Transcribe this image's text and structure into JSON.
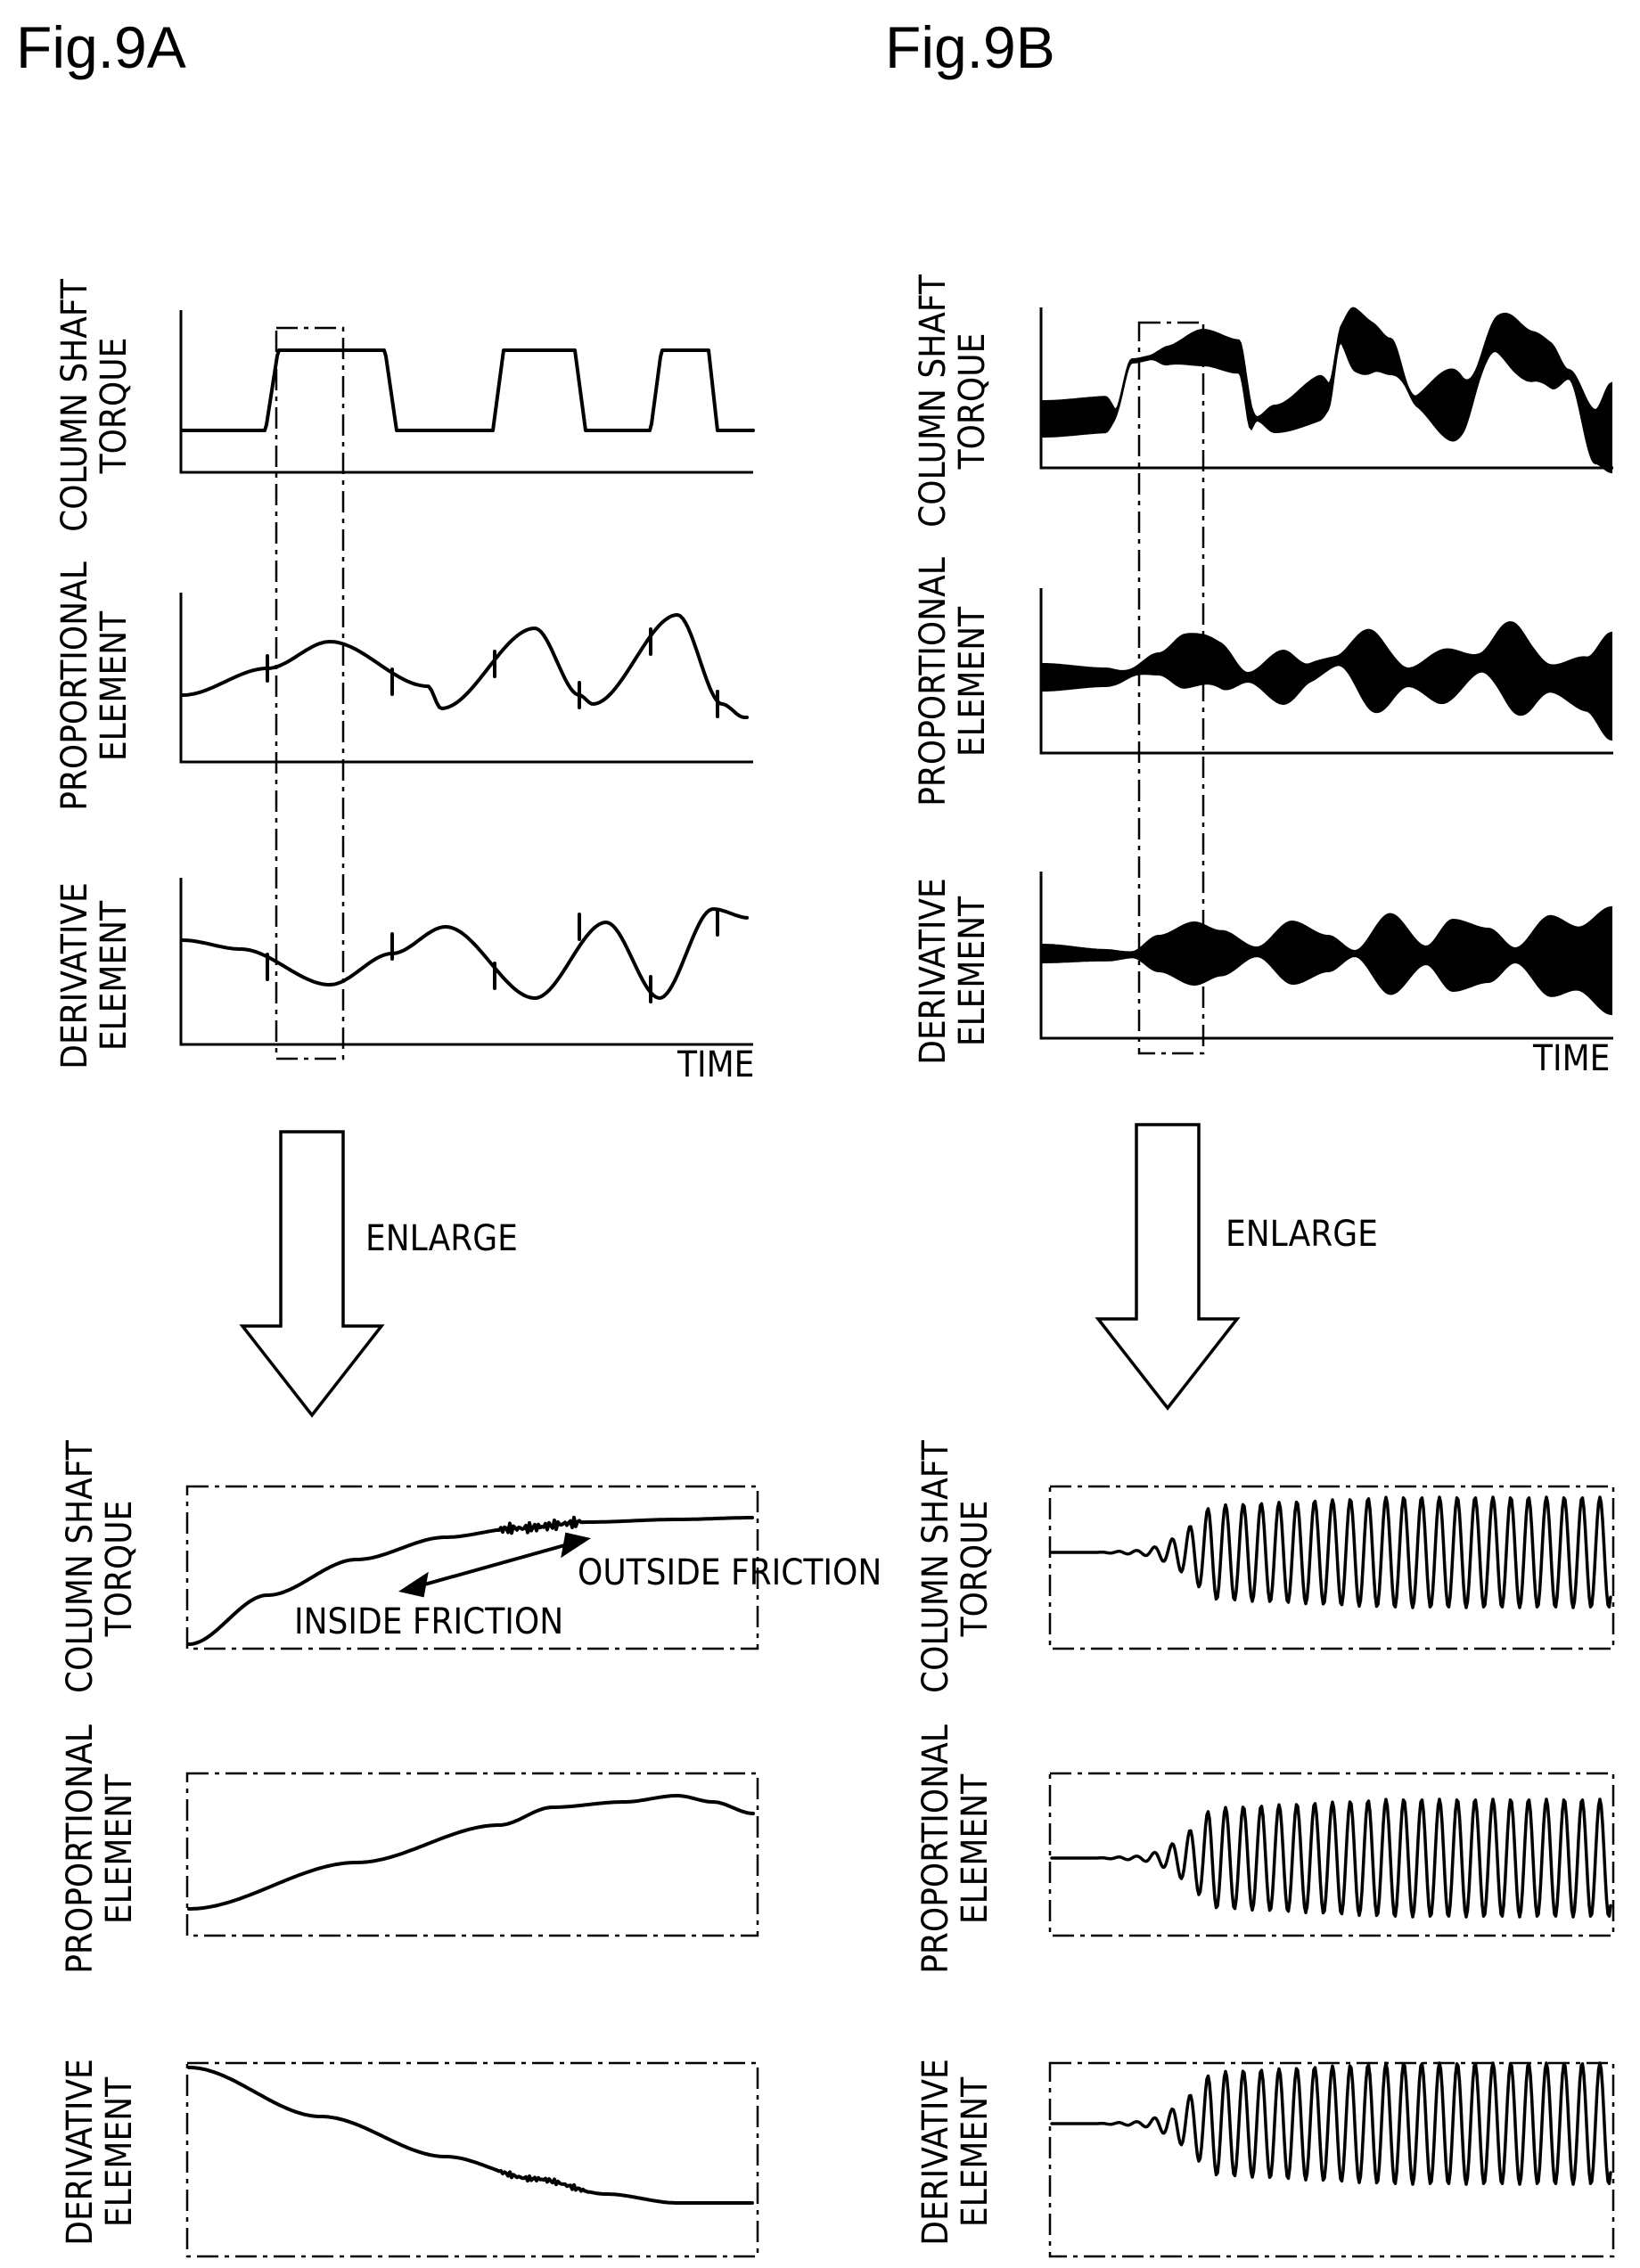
{
  "figures": {
    "a": {
      "title": "Fig.9A",
      "overview_labels": {
        "torque": [
          "COLUMN SHAFT",
          "TORQUE"
        ],
        "proportional": [
          "PROPORTIONAL",
          "ELEMENT"
        ],
        "derivative": [
          "DERIVATIVE",
          "ELEMENT"
        ]
      },
      "time_label": "TIME",
      "arrow_label": "ENLARGE",
      "enlarged_labels": {
        "torque": [
          "COLUMN SHAFT",
          "TORQUE"
        ],
        "proportional": [
          "PROPORTIONAL",
          "ELEMENT"
        ],
        "derivative": [
          "DERIVATIVE",
          "ELEMENT"
        ]
      },
      "annotations": {
        "outside": "OUTSIDE FRICTION",
        "inside": "INSIDE FRICTION"
      }
    },
    "b": {
      "title": "Fig.9B",
      "overview_labels": {
        "torque": [
          "COLUMN SHAFT",
          "TORQUE"
        ],
        "proportional": [
          "PROPORTIONAL",
          "ELEMENT"
        ],
        "derivative": [
          "DERIVATIVE",
          "ELEMENT"
        ]
      },
      "time_label": "TIME",
      "arrow_label": "ENLARGE",
      "enlarged_labels": {
        "torque": [
          "COLUMN SHAFT",
          "TORQUE"
        ],
        "proportional": [
          "PROPORTIONAL",
          "ELEMENT"
        ],
        "derivative": [
          "DERIVATIVE",
          "ELEMENT"
        ]
      }
    }
  },
  "style": {
    "ink": "#000000",
    "paper": "#ffffff"
  }
}
